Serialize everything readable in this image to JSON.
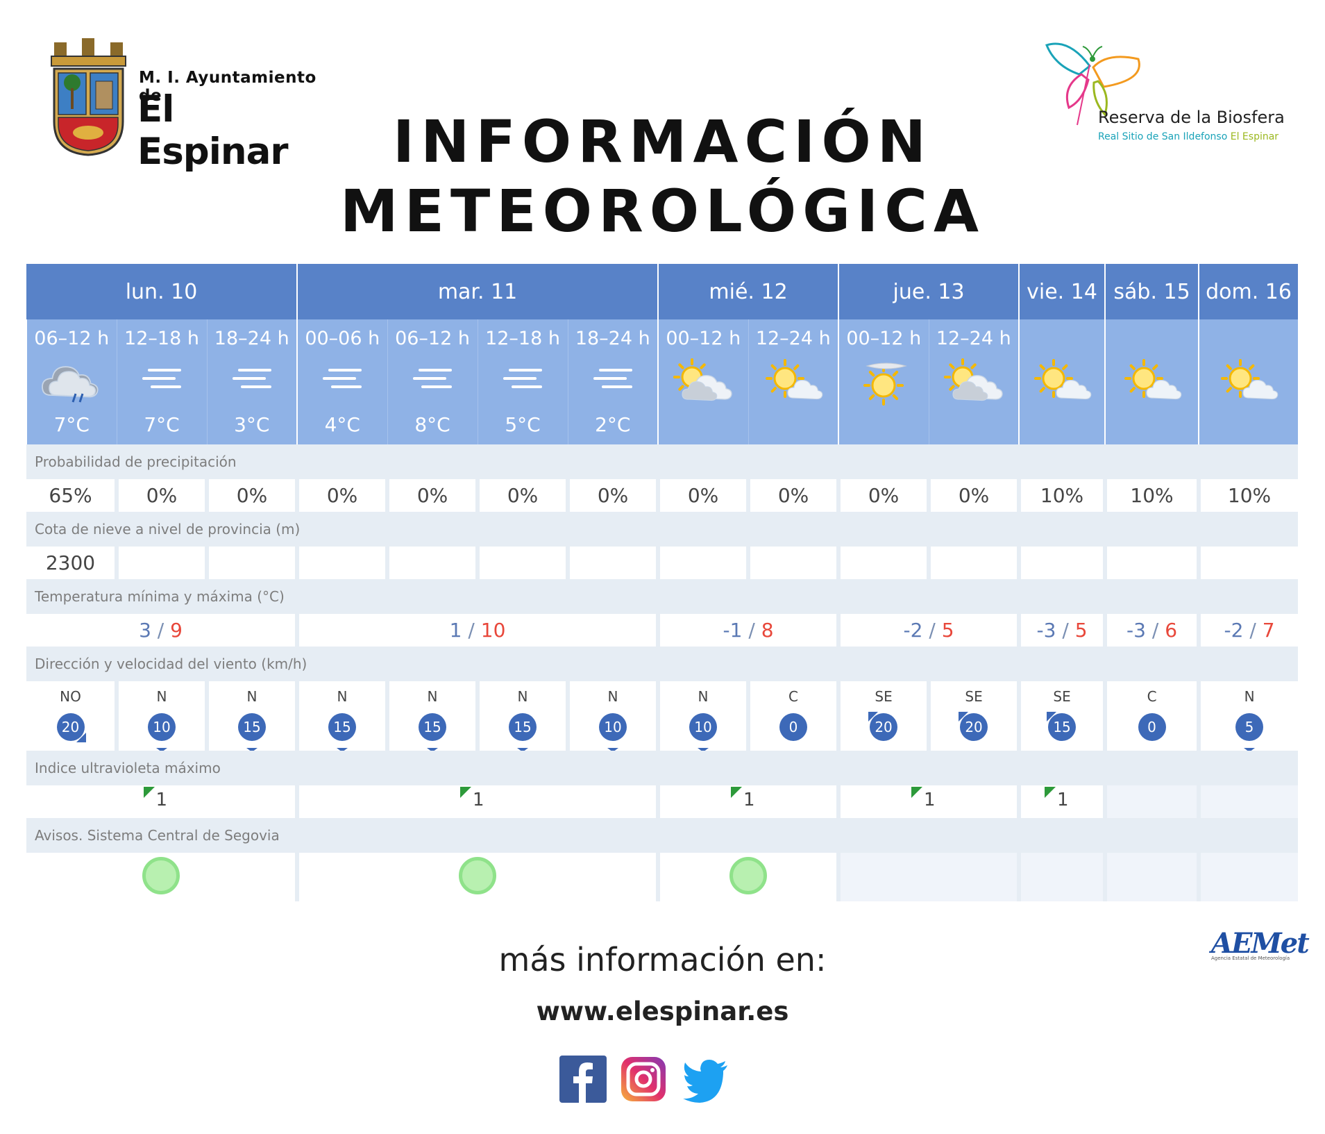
{
  "header": {
    "org_line1": "M. I. Ayuntamiento de",
    "org_line2": "El Espinar",
    "title_line1": "INFORMACIÓN",
    "title_line2": "METEOROLÓGICA",
    "reserve_line1": "Reserva de la Biosfera",
    "reserve_line2a": "Real Sitio de San Ildefonso",
    "reserve_line2b": "El Espinar"
  },
  "days": [
    {
      "label": "lun. 10",
      "span": 3
    },
    {
      "label": "mar. 11",
      "span": 4
    },
    {
      "label": "mié. 12",
      "span": 2
    },
    {
      "label": "jue. 13",
      "span": 2
    },
    {
      "label": "vie. 14",
      "span": 1
    },
    {
      "label": "sáb. 15",
      "span": 1
    },
    {
      "label": "dom. 16",
      "span": 1
    }
  ],
  "slots": [
    {
      "label": "06–12 h",
      "icon": "rain-cloud-icon",
      "temp": "7°C"
    },
    {
      "label": "12–18 h",
      "icon": "fog-icon",
      "temp": "7°C"
    },
    {
      "label": "18–24 h",
      "icon": "fog-icon",
      "temp": "3°C"
    },
    {
      "label": "00–06 h",
      "icon": "fog-icon",
      "temp": "4°C"
    },
    {
      "label": "06–12 h",
      "icon": "fog-icon",
      "temp": "8°C"
    },
    {
      "label": "12–18 h",
      "icon": "fog-icon",
      "temp": "5°C"
    },
    {
      "label": "18–24 h",
      "icon": "fog-icon",
      "temp": "2°C"
    },
    {
      "label": "00–12 h",
      "icon": "partly-cloudy-icon",
      "temp": ""
    },
    {
      "label": "12–24 h",
      "icon": "sun-cloud-icon",
      "temp": ""
    },
    {
      "label": "00–12 h",
      "icon": "sun-haze-icon",
      "temp": ""
    },
    {
      "label": "12–24 h",
      "icon": "partly-cloudy-icon",
      "temp": ""
    },
    {
      "label": "",
      "icon": "sun-cloud-icon",
      "temp": ""
    },
    {
      "label": "",
      "icon": "sun-cloud-icon",
      "temp": ""
    },
    {
      "label": "",
      "icon": "sun-cloud-icon",
      "temp": ""
    }
  ],
  "sections": {
    "precip": "Probabilidad de precipitación",
    "snow": "Cota de nieve a nivel de provincia (m)",
    "temp": "Temperatura mínima y máxima (°C)",
    "wind": "Dirección y velocidad del viento (km/h)",
    "uv": "Indice ultravioleta máximo",
    "avisos": "Avisos. Sistema Central de Segovia"
  },
  "precip": [
    "65%",
    "0%",
    "0%",
    "0%",
    "0%",
    "0%",
    "0%",
    "0%",
    "0%",
    "0%",
    "0%",
    "10%",
    "10%",
    "10%"
  ],
  "snow": [
    "2300",
    "",
    "",
    "",
    "",
    "",
    "",
    "",
    "",
    "",
    "",
    "",
    "",
    ""
  ],
  "temps": [
    {
      "min": "3",
      "max": "9"
    },
    {
      "min": "1",
      "max": "10"
    },
    {
      "min": "-1",
      "max": "8"
    },
    {
      "min": "-2",
      "max": "5"
    },
    {
      "min": "-3",
      "max": "5"
    },
    {
      "min": "-3",
      "max": "6"
    },
    {
      "min": "-2",
      "max": "7"
    }
  ],
  "temp_sep": "/",
  "wind": [
    {
      "dir": "NO",
      "speed": "20",
      "arrow": "se"
    },
    {
      "dir": "N",
      "speed": "10",
      "arrow": "s"
    },
    {
      "dir": "N",
      "speed": "15",
      "arrow": "s"
    },
    {
      "dir": "N",
      "speed": "15",
      "arrow": "s"
    },
    {
      "dir": "N",
      "speed": "15",
      "arrow": "s"
    },
    {
      "dir": "N",
      "speed": "15",
      "arrow": "s"
    },
    {
      "dir": "N",
      "speed": "10",
      "arrow": "s"
    },
    {
      "dir": "N",
      "speed": "10",
      "arrow": "s"
    },
    {
      "dir": "C",
      "speed": "0",
      "arrow": "none"
    },
    {
      "dir": "SE",
      "speed": "20",
      "arrow": "nw"
    },
    {
      "dir": "SE",
      "speed": "20",
      "arrow": "nw"
    },
    {
      "dir": "SE",
      "speed": "15",
      "arrow": "nw"
    },
    {
      "dir": "C",
      "speed": "0",
      "arrow": "none"
    },
    {
      "dir": "N",
      "speed": "5",
      "arrow": "s"
    }
  ],
  "uv": [
    "1",
    "1",
    "1",
    "1",
    "1",
    "",
    ""
  ],
  "avisos": [
    "green",
    "green",
    "green",
    "",
    "",
    "",
    ""
  ],
  "colors": {
    "day_header": "#5882c8",
    "slot_bg": "#8fb2e6",
    "section_bg": "#e6edf4",
    "max_temp": "#e8473a",
    "min_temp": "#5b79b4",
    "wind_ball": "#3d69b8",
    "uv_flag": "#2d9a3a",
    "aviso_green": "#b8f0b0"
  },
  "footer": {
    "more": "más información en:",
    "url": "www.elespinar.es",
    "social": [
      "facebook-icon",
      "instagram-icon",
      "twitter-icon"
    ],
    "aemet_logo": "AEMet",
    "aemet_sub": "Agencia Estatal de Meteorología"
  }
}
